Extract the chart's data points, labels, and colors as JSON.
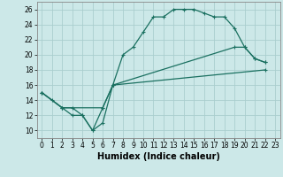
{
  "xlabel": "Humidex (Indice chaleur)",
  "bg_color": "#cce8e8",
  "grid_color": "#aacece",
  "line_color": "#1a7060",
  "xlim": [
    -0.5,
    23.5
  ],
  "ylim": [
    9,
    27
  ],
  "xticks": [
    0,
    1,
    2,
    3,
    4,
    5,
    6,
    7,
    8,
    9,
    10,
    11,
    12,
    13,
    14,
    15,
    16,
    17,
    18,
    19,
    20,
    21,
    22,
    23
  ],
  "yticks": [
    10,
    12,
    14,
    16,
    18,
    20,
    22,
    24,
    26
  ],
  "line1_x": [
    0,
    1,
    2,
    3,
    4,
    5,
    6,
    7,
    8,
    9,
    10,
    11,
    12,
    13,
    14,
    15,
    16,
    17,
    18,
    19,
    20,
    21,
    22
  ],
  "line1_y": [
    15,
    14,
    13,
    12,
    12,
    10,
    11,
    16,
    20,
    21,
    23,
    25,
    25,
    26,
    26,
    26,
    25.5,
    25,
    25,
    23.5,
    21,
    19.5,
    19
  ],
  "line2_x": [
    0,
    2,
    3,
    4,
    5,
    6,
    7,
    19,
    20,
    21,
    22
  ],
  "line2_y": [
    15,
    13,
    13,
    12,
    10,
    13,
    16,
    21,
    21,
    19.5,
    19
  ],
  "line3_x": [
    0,
    2,
    6,
    7,
    22
  ],
  "line3_y": [
    15,
    13,
    13,
    16,
    18
  ],
  "xlabel_fontsize": 7,
  "tick_fontsize": 5.5,
  "lw": 0.9,
  "ms": 3
}
